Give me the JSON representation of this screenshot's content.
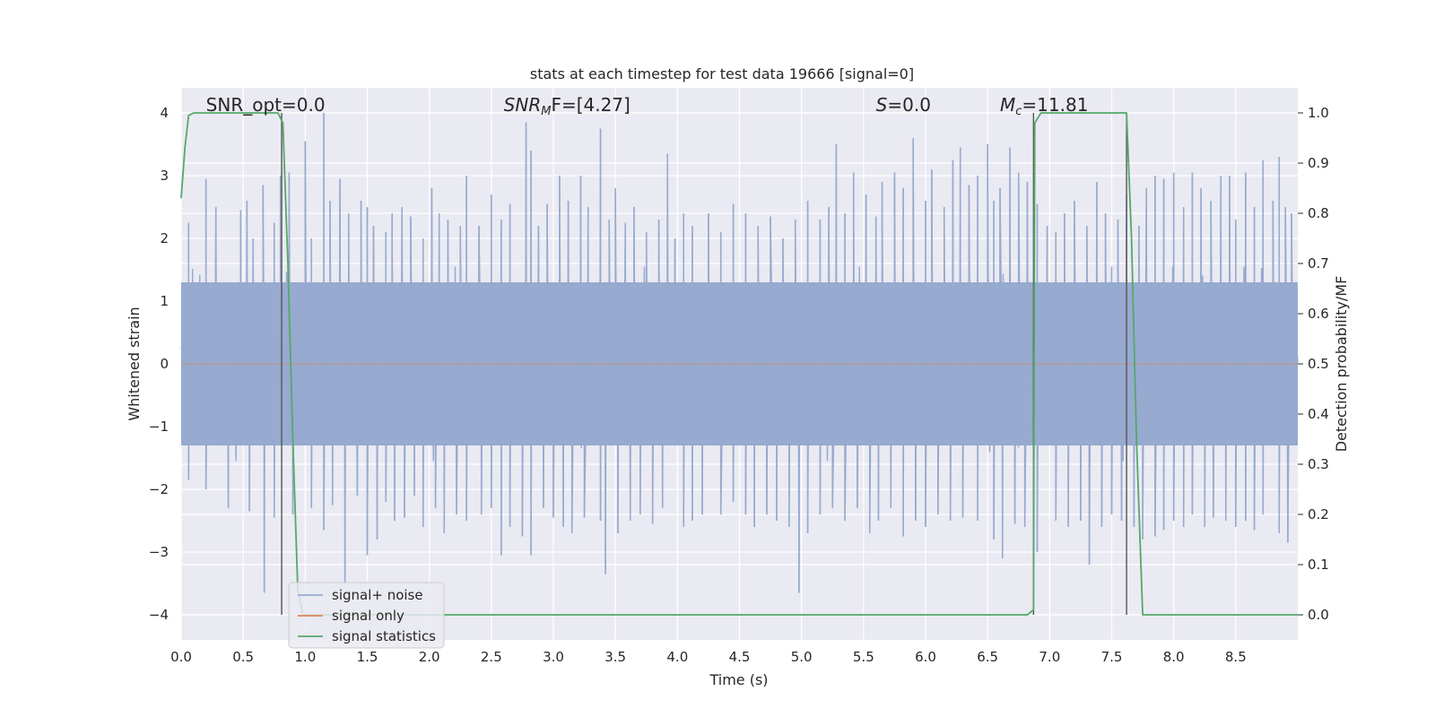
{
  "chart_data": {
    "type": "line",
    "title": "stats at each timestep for test data 19666 [signal=0]",
    "xlabel": "Time (s)",
    "ylabel": "Whitened strain",
    "y2label": "Detection probability/MF",
    "xlim": [
      0.0,
      9.0
    ],
    "ylim": [
      -4.4,
      4.4
    ],
    "y2lim": [
      -0.05,
      1.05
    ],
    "xticks": [
      "0.0",
      "0.5",
      "1.0",
      "1.5",
      "2.0",
      "2.5",
      "3.0",
      "3.5",
      "4.0",
      "4.5",
      "5.0",
      "5.5",
      "6.0",
      "6.5",
      "7.0",
      "7.5",
      "8.0",
      "8.5"
    ],
    "yticks": [
      "−4",
      "−3",
      "−2",
      "−1",
      "0",
      "1",
      "2",
      "3",
      "4"
    ],
    "y2ticks": [
      "0.0",
      "0.1",
      "0.2",
      "0.3",
      "0.4",
      "0.5",
      "0.6",
      "0.7",
      "0.8",
      "0.9",
      "1.0"
    ],
    "grid": true,
    "legend_position": "lower-left",
    "annotations": [
      {
        "text": "SNR_opt=0.0",
        "x": 0.2
      },
      {
        "math": "SNR",
        "sub": "M",
        "tail": "F=[4.27]",
        "x": 2.6
      },
      {
        "math": "S",
        "tail": "=0.0",
        "x": 5.6
      },
      {
        "math": "M",
        "sub": "c",
        "tail": "=11.81",
        "x": 6.6
      }
    ],
    "series": [
      {
        "name": "signal+ noise",
        "color": "#97aacf",
        "kind": "noise",
        "samples_per_second": 120,
        "envelope": 1.55,
        "spikes": [
          [
            0.06,
            2.25
          ],
          [
            0.2,
            2.95
          ],
          [
            0.28,
            2.5
          ],
          [
            0.48,
            2.45
          ],
          [
            0.53,
            2.6
          ],
          [
            0.58,
            2.0
          ],
          [
            0.66,
            2.85
          ],
          [
            0.75,
            2.25
          ],
          [
            0.8,
            3.0
          ],
          [
            0.87,
            3.05
          ],
          [
            1.0,
            3.55
          ],
          [
            1.05,
            2.0
          ],
          [
            1.15,
            4.0
          ],
          [
            1.2,
            2.6
          ],
          [
            1.28,
            2.95
          ],
          [
            1.35,
            2.4
          ],
          [
            1.45,
            2.6
          ],
          [
            1.5,
            2.5
          ],
          [
            1.55,
            2.2
          ],
          [
            1.65,
            2.1
          ],
          [
            1.7,
            2.4
          ],
          [
            1.78,
            2.5
          ],
          [
            1.85,
            2.35
          ],
          [
            1.95,
            2.0
          ],
          [
            2.02,
            2.8
          ],
          [
            2.08,
            2.4
          ],
          [
            2.15,
            2.3
          ],
          [
            2.25,
            2.2
          ],
          [
            2.3,
            3.0
          ],
          [
            2.4,
            2.2
          ],
          [
            2.5,
            2.7
          ],
          [
            2.58,
            2.3
          ],
          [
            2.65,
            2.55
          ],
          [
            2.78,
            3.85
          ],
          [
            2.82,
            3.4
          ],
          [
            2.88,
            2.2
          ],
          [
            2.95,
            2.55
          ],
          [
            3.05,
            3.0
          ],
          [
            3.12,
            2.6
          ],
          [
            3.22,
            3.0
          ],
          [
            3.28,
            2.5
          ],
          [
            3.38,
            3.75
          ],
          [
            3.45,
            2.3
          ],
          [
            3.5,
            2.8
          ],
          [
            3.58,
            2.25
          ],
          [
            3.65,
            2.5
          ],
          [
            3.75,
            2.1
          ],
          [
            3.85,
            2.3
          ],
          [
            3.92,
            3.35
          ],
          [
            3.98,
            2.0
          ],
          [
            4.05,
            2.4
          ],
          [
            4.12,
            2.2
          ],
          [
            4.25,
            2.4
          ],
          [
            4.35,
            2.1
          ],
          [
            4.45,
            2.55
          ],
          [
            4.55,
            2.4
          ],
          [
            4.65,
            2.2
          ],
          [
            4.75,
            2.35
          ],
          [
            4.85,
            2.0
          ],
          [
            4.95,
            2.3
          ],
          [
            5.05,
            2.6
          ],
          [
            5.15,
            2.3
          ],
          [
            5.22,
            2.5
          ],
          [
            5.28,
            3.5
          ],
          [
            5.35,
            2.4
          ],
          [
            5.42,
            3.05
          ],
          [
            5.52,
            2.7
          ],
          [
            5.6,
            2.35
          ],
          [
            5.65,
            2.9
          ],
          [
            5.75,
            3.05
          ],
          [
            5.82,
            2.8
          ],
          [
            5.9,
            3.6
          ],
          [
            6.0,
            2.6
          ],
          [
            6.05,
            3.1
          ],
          [
            6.15,
            2.5
          ],
          [
            6.22,
            3.25
          ],
          [
            6.28,
            3.45
          ],
          [
            6.35,
            2.85
          ],
          [
            6.42,
            3.0
          ],
          [
            6.5,
            3.5
          ],
          [
            6.55,
            2.6
          ],
          [
            6.6,
            2.8
          ],
          [
            6.68,
            3.45
          ],
          [
            6.75,
            3.05
          ],
          [
            6.82,
            2.9
          ],
          [
            6.9,
            2.55
          ],
          [
            6.98,
            2.2
          ],
          [
            7.05,
            2.1
          ],
          [
            7.12,
            2.4
          ],
          [
            7.2,
            2.6
          ],
          [
            7.3,
            2.2
          ],
          [
            7.38,
            2.9
          ],
          [
            7.45,
            2.4
          ],
          [
            7.55,
            2.3
          ],
          [
            7.62,
            2.7
          ],
          [
            7.72,
            2.2
          ],
          [
            7.78,
            2.8
          ],
          [
            7.85,
            3.0
          ],
          [
            7.92,
            2.95
          ],
          [
            8.0,
            3.05
          ],
          [
            8.08,
            2.5
          ],
          [
            8.15,
            3.05
          ],
          [
            8.22,
            2.8
          ],
          [
            8.3,
            2.6
          ],
          [
            8.38,
            3.0
          ],
          [
            8.45,
            3.0
          ],
          [
            8.5,
            2.3
          ],
          [
            8.58,
            3.05
          ],
          [
            8.65,
            2.5
          ],
          [
            8.72,
            3.25
          ],
          [
            8.8,
            2.6
          ],
          [
            8.85,
            3.3
          ],
          [
            8.9,
            2.5
          ],
          [
            8.95,
            2.4
          ]
        ],
        "dips": [
          [
            0.06,
            -1.85
          ],
          [
            0.2,
            -2.0
          ],
          [
            0.38,
            -2.3
          ],
          [
            0.55,
            -2.35
          ],
          [
            0.67,
            -3.65
          ],
          [
            0.75,
            -2.45
          ],
          [
            0.9,
            -2.4
          ],
          [
            1.05,
            -2.3
          ],
          [
            1.15,
            -2.65
          ],
          [
            1.22,
            -2.25
          ],
          [
            1.32,
            -3.5
          ],
          [
            1.42,
            -2.1
          ],
          [
            1.5,
            -3.05
          ],
          [
            1.58,
            -2.8
          ],
          [
            1.65,
            -2.2
          ],
          [
            1.72,
            -2.5
          ],
          [
            1.8,
            -2.45
          ],
          [
            1.88,
            -2.1
          ],
          [
            1.95,
            -2.6
          ],
          [
            2.05,
            -2.3
          ],
          [
            2.12,
            -2.7
          ],
          [
            2.22,
            -2.4
          ],
          [
            2.3,
            -2.5
          ],
          [
            2.42,
            -2.4
          ],
          [
            2.5,
            -2.3
          ],
          [
            2.58,
            -3.05
          ],
          [
            2.65,
            -2.6
          ],
          [
            2.75,
            -2.75
          ],
          [
            2.82,
            -3.05
          ],
          [
            2.92,
            -2.3
          ],
          [
            3.0,
            -2.45
          ],
          [
            3.08,
            -2.6
          ],
          [
            3.15,
            -2.7
          ],
          [
            3.25,
            -2.45
          ],
          [
            3.38,
            -2.5
          ],
          [
            3.42,
            -3.35
          ],
          [
            3.52,
            -2.7
          ],
          [
            3.62,
            -2.5
          ],
          [
            3.7,
            -2.4
          ],
          [
            3.8,
            -2.55
          ],
          [
            3.88,
            -2.3
          ],
          [
            4.05,
            -2.6
          ],
          [
            4.12,
            -2.5
          ],
          [
            4.2,
            -2.4
          ],
          [
            4.35,
            -2.4
          ],
          [
            4.45,
            -2.2
          ],
          [
            4.55,
            -2.4
          ],
          [
            4.62,
            -2.6
          ],
          [
            4.72,
            -2.4
          ],
          [
            4.8,
            -2.5
          ],
          [
            4.9,
            -2.6
          ],
          [
            4.98,
            -3.65
          ],
          [
            5.05,
            -2.7
          ],
          [
            5.15,
            -2.4
          ],
          [
            5.25,
            -2.3
          ],
          [
            5.35,
            -2.5
          ],
          [
            5.45,
            -2.3
          ],
          [
            5.55,
            -2.7
          ],
          [
            5.62,
            -2.5
          ],
          [
            5.72,
            -2.3
          ],
          [
            5.82,
            -2.75
          ],
          [
            5.92,
            -2.5
          ],
          [
            6.0,
            -2.6
          ],
          [
            6.1,
            -2.4
          ],
          [
            6.2,
            -2.5
          ],
          [
            6.3,
            -2.45
          ],
          [
            6.42,
            -2.5
          ],
          [
            6.55,
            -2.8
          ],
          [
            6.62,
            -3.1
          ],
          [
            6.72,
            -2.55
          ],
          [
            6.8,
            -2.6
          ],
          [
            6.9,
            -3.0
          ],
          [
            7.05,
            -2.5
          ],
          [
            7.15,
            -2.6
          ],
          [
            7.25,
            -2.5
          ],
          [
            7.32,
            -3.2
          ],
          [
            7.42,
            -2.6
          ],
          [
            7.5,
            -2.4
          ],
          [
            7.58,
            -2.5
          ],
          [
            7.68,
            -2.6
          ],
          [
            7.75,
            -2.8
          ],
          [
            7.85,
            -2.75
          ],
          [
            7.92,
            -2.65
          ],
          [
            8.0,
            -2.5
          ],
          [
            8.08,
            -2.6
          ],
          [
            8.15,
            -2.4
          ],
          [
            8.25,
            -2.6
          ],
          [
            8.32,
            -2.45
          ],
          [
            8.42,
            -2.5
          ],
          [
            8.5,
            -2.6
          ],
          [
            8.58,
            -2.5
          ],
          [
            8.65,
            -2.65
          ],
          [
            8.72,
            -2.4
          ],
          [
            8.85,
            -2.7
          ],
          [
            8.92,
            -2.85
          ]
        ]
      },
      {
        "name": "signal only",
        "color": "#dd8452",
        "kind": "flat",
        "y": 0.0
      },
      {
        "name": "signal statistics",
        "color": "#55a868",
        "kind": "line",
        "axis": "right",
        "x": [
          0.0,
          0.03,
          0.06,
          0.1,
          0.2,
          0.3,
          0.4,
          0.5,
          0.6,
          0.7,
          0.78,
          0.82,
          0.86,
          0.9,
          0.94,
          0.98,
          1.05,
          2.0,
          3.0,
          4.0,
          5.0,
          6.0,
          6.5,
          6.82,
          6.87,
          6.88,
          6.93,
          6.97,
          7.03,
          7.1,
          7.3,
          7.5,
          7.62,
          7.66,
          7.7,
          7.75,
          7.9,
          8.5,
          9.0
        ],
        "y": [
          0.83,
          0.93,
          0.995,
          1.0,
          1.0,
          1.0,
          1.0,
          1.0,
          1.0,
          1.0,
          1.0,
          0.98,
          0.7,
          0.35,
          0.05,
          0.0,
          0.0,
          0.0,
          0.0,
          0.0,
          0.0,
          0.0,
          0.0,
          0.0,
          0.01,
          0.98,
          1.0,
          1.0,
          1.0,
          1.0,
          1.0,
          1.0,
          1.0,
          0.75,
          0.35,
          0.0,
          0.0,
          0.0,
          0.0
        ]
      },
      {
        "name": "",
        "color": "#555555",
        "kind": "vlines",
        "axis": "left",
        "lines": [
          {
            "x": 0.81,
            "y0": -4.0,
            "y1": 4.0
          },
          {
            "x": 6.87,
            "y0": -4.0,
            "y1": 4.0
          },
          {
            "x": 7.62,
            "y0": -4.0,
            "y1": 4.0
          }
        ]
      }
    ]
  }
}
